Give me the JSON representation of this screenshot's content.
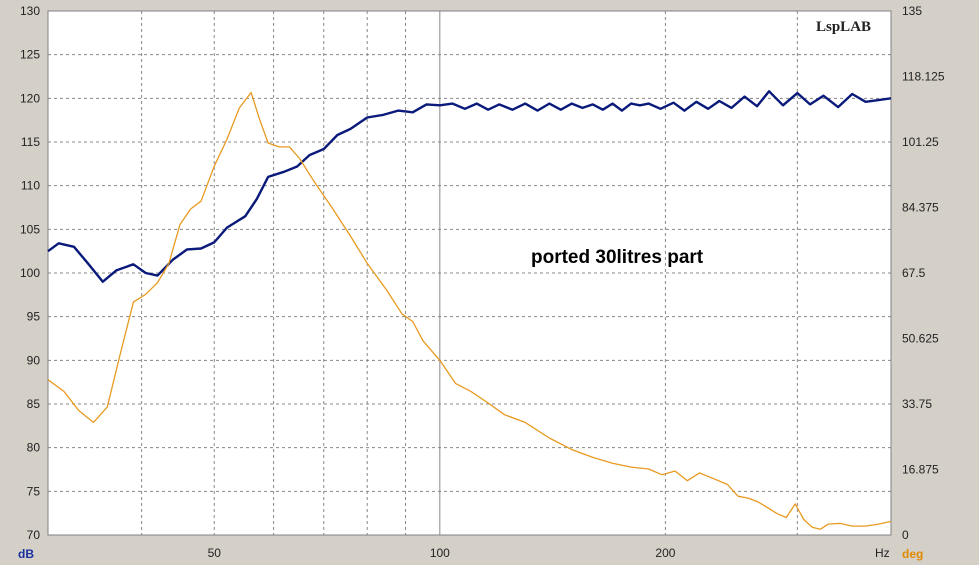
{
  "chart_data": {
    "type": "line",
    "title": "",
    "watermark": "LspLAB",
    "annotation": "ported 30litres part",
    "xlabel": "Hz",
    "x_scale": "log",
    "xlim": [
      30,
      400
    ],
    "x_tick_labels": [
      "50",
      "100",
      "200"
    ],
    "x_ticks": [
      50,
      100,
      200
    ],
    "y_left": {
      "label": "dB",
      "lim": [
        70,
        130
      ],
      "tick_labels": [
        "70",
        "75",
        "80",
        "85",
        "90",
        "95",
        "100",
        "105",
        "110",
        "115",
        "120",
        "125",
        "130"
      ]
    },
    "y_right": {
      "label": "deg",
      "lim": [
        0,
        135
      ],
      "tick_labels": [
        "0",
        "16.875",
        "33.75",
        "50.625",
        "67.5",
        "84.375",
        "101.25",
        "118.125",
        "135"
      ]
    },
    "grid": true,
    "colors": {
      "magnitude": "#0a1a7a",
      "phase": "#e89a20",
      "plot_bg": "#ffffff"
    },
    "series": [
      {
        "axis": "left",
        "color": "#0a1a7a",
        "points": [
          [
            30,
            102.5
          ],
          [
            31,
            103.4
          ],
          [
            32.5,
            103
          ],
          [
            34,
            101
          ],
          [
            35.5,
            99
          ],
          [
            37,
            100.3
          ],
          [
            39,
            101
          ],
          [
            40.5,
            100
          ],
          [
            42,
            99.7
          ],
          [
            44,
            101.5
          ],
          [
            46,
            102.7
          ],
          [
            48,
            102.8
          ],
          [
            50,
            103.5
          ],
          [
            52,
            105.2
          ],
          [
            55,
            106.5
          ],
          [
            57,
            108.5
          ],
          [
            59,
            111
          ],
          [
            62,
            111.6
          ],
          [
            64.5,
            112.2
          ],
          [
            67,
            113.5
          ],
          [
            70,
            114.2
          ],
          [
            73,
            115.8
          ],
          [
            76,
            116.5
          ],
          [
            80,
            117.8
          ],
          [
            84,
            118.1
          ],
          [
            88,
            118.6
          ],
          [
            92,
            118.4
          ],
          [
            96,
            119.3
          ],
          [
            100,
            119.2
          ],
          [
            104,
            119.4
          ],
          [
            108,
            118.8
          ],
          [
            112,
            119.4
          ],
          [
            116,
            118.7
          ],
          [
            120,
            119.3
          ],
          [
            125,
            118.7
          ],
          [
            130,
            119.4
          ],
          [
            135,
            118.6
          ],
          [
            140,
            119.4
          ],
          [
            145,
            118.7
          ],
          [
            150,
            119.4
          ],
          [
            155,
            118.9
          ],
          [
            160,
            119.3
          ],
          [
            165,
            118.7
          ],
          [
            170,
            119.4
          ],
          [
            175,
            118.6
          ],
          [
            180,
            119.4
          ],
          [
            185,
            119.2
          ],
          [
            190,
            119.4
          ],
          [
            197,
            118.8
          ],
          [
            205,
            119.5
          ],
          [
            212,
            118.6
          ],
          [
            220,
            119.6
          ],
          [
            228,
            118.8
          ],
          [
            236,
            119.7
          ],
          [
            245,
            118.9
          ],
          [
            255,
            120.2
          ],
          [
            265,
            119.1
          ],
          [
            275,
            120.8
          ],
          [
            287,
            119.2
          ],
          [
            300,
            120.6
          ],
          [
            312,
            119.3
          ],
          [
            325,
            120.3
          ],
          [
            340,
            119.0
          ],
          [
            355,
            120.5
          ],
          [
            370,
            119.6
          ],
          [
            385,
            119.8
          ],
          [
            400,
            120.0
          ]
        ]
      },
      {
        "axis": "right",
        "color": "#e89a20",
        "points": [
          [
            30,
            40
          ],
          [
            31.5,
            37
          ],
          [
            33,
            32
          ],
          [
            34.5,
            29
          ],
          [
            36,
            33
          ],
          [
            37.5,
            47
          ],
          [
            39,
            60
          ],
          [
            40.5,
            62
          ],
          [
            42,
            65
          ],
          [
            43.5,
            70
          ],
          [
            45,
            80
          ],
          [
            46.5,
            84
          ],
          [
            48,
            86
          ],
          [
            50,
            95
          ],
          [
            52,
            102
          ],
          [
            54,
            110
          ],
          [
            56,
            114
          ],
          [
            57.5,
            107
          ],
          [
            59,
            101
          ],
          [
            61,
            100
          ],
          [
            63,
            100
          ],
          [
            65,
            97
          ],
          [
            68,
            91
          ],
          [
            72,
            84
          ],
          [
            76,
            77
          ],
          [
            80,
            70
          ],
          [
            85,
            63
          ],
          [
            89,
            57
          ],
          [
            92,
            55
          ],
          [
            95,
            50
          ],
          [
            100,
            45
          ],
          [
            105,
            39
          ],
          [
            110,
            37
          ],
          [
            116,
            34
          ],
          [
            122,
            31
          ],
          [
            130,
            29
          ],
          [
            140,
            25
          ],
          [
            150,
            22
          ],
          [
            160,
            20
          ],
          [
            170,
            18.5
          ],
          [
            180,
            17.5
          ],
          [
            190,
            17
          ],
          [
            198,
            15.5
          ],
          [
            206,
            16.5
          ],
          [
            214,
            14
          ],
          [
            222,
            16
          ],
          [
            232,
            14.5
          ],
          [
            242,
            13
          ],
          [
            250,
            10
          ],
          [
            258,
            9.5
          ],
          [
            266,
            8.5
          ],
          [
            274,
            7
          ],
          [
            282,
            5.5
          ],
          [
            290,
            4.5
          ],
          [
            298,
            8
          ],
          [
            306,
            4
          ],
          [
            314,
            2
          ],
          [
            322,
            1.5
          ],
          [
            330,
            2.8
          ],
          [
            342,
            3
          ],
          [
            355,
            2.3
          ],
          [
            370,
            2.3
          ],
          [
            385,
            2.8
          ],
          [
            400,
            3.5
          ]
        ]
      }
    ]
  }
}
